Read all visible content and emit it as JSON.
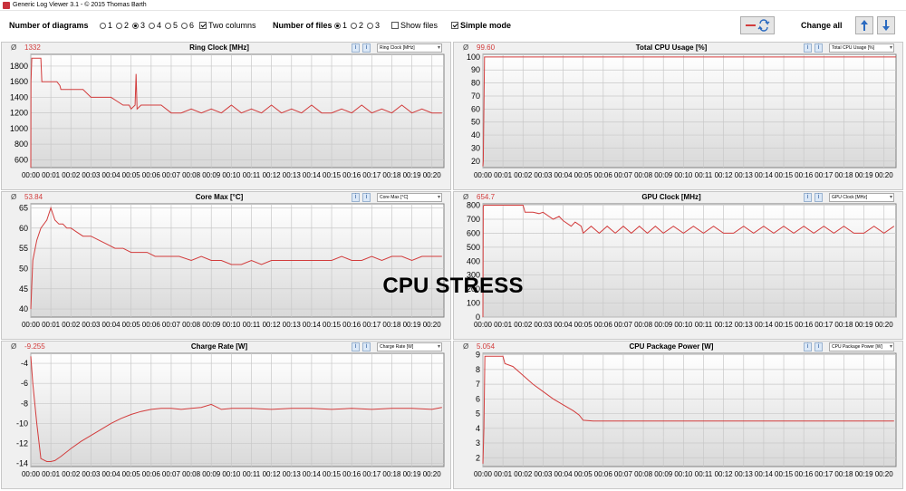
{
  "window": {
    "title": "Generic Log Viewer 3.1 - © 2015 Thomas Barth"
  },
  "toolbar": {
    "num_diagrams_label": "Number of diagrams",
    "diagram_options": [
      "1",
      "2",
      "3",
      "4",
      "5",
      "6"
    ],
    "diagram_selected": "3",
    "two_columns_label": "Two columns",
    "two_columns_checked": true,
    "num_files_label": "Number of files",
    "file_options": [
      "1",
      "2",
      "3"
    ],
    "file_selected": "1",
    "show_files_label": "Show files",
    "show_files_checked": false,
    "simple_mode_label": "Simple mode",
    "simple_mode_checked": true,
    "change_all_label": "Change all",
    "icons": [
      "swap-lines-icon",
      "arrow-up-icon",
      "arrow-down-icon"
    ]
  },
  "overlay": {
    "text": "CPU STRESS"
  },
  "colors": {
    "line": "#d23c3c",
    "plot_bg_top": "#ffffff",
    "plot_bg_bottom": "#d9d9d9"
  },
  "x_ticks": [
    "00:00",
    "00:01",
    "00:02",
    "00:03",
    "00:04",
    "00:05",
    "00:06",
    "00:07",
    "00:08",
    "00:09",
    "00:10",
    "00:11",
    "00:12",
    "00:13",
    "00:14",
    "00:15",
    "00:16",
    "00:17",
    "00:18",
    "00:19",
    "00:20"
  ],
  "panels": [
    {
      "title": "Ring Clock [MHz]",
      "avg": "1332",
      "select": "Ring Clock [MHz]"
    },
    {
      "title": "Total CPU Usage [%]",
      "avg": "99.60",
      "select": "Total CPU Usage [%]"
    },
    {
      "title": "Core Max [°C]",
      "avg": "53.84",
      "select": "Core Max [°C]"
    },
    {
      "title": "GPU Clock [MHz]",
      "avg": "654.7",
      "select": "GPU Clock [MHz]"
    },
    {
      "title": "Charge Rate [W]",
      "avg": "-9.255",
      "select": "Charge Rate [W]"
    },
    {
      "title": "CPU Package Power [W]",
      "avg": "5.054",
      "select": "CPU Package Power [W]"
    }
  ],
  "chart_data": [
    {
      "type": "line",
      "title": "Ring Clock [MHz]",
      "ylim": [
        500,
        1950
      ],
      "yticks": [
        600,
        800,
        1000,
        1200,
        1400,
        1600,
        1800
      ],
      "grid": true,
      "series": [
        {
          "x": [
            0,
            0.01,
            0.05,
            0.5,
            0.55,
            1.0,
            1.3,
            1.45,
            1.5,
            1.7,
            2.5,
            2.6,
            3.0,
            3.5,
            4.0,
            4.6,
            4.9,
            5.0,
            5.2,
            5.25,
            5.3,
            5.5,
            6.0,
            6.5,
            7,
            7.5,
            8,
            8.5,
            9,
            9.5,
            10,
            10.5,
            11,
            11.5,
            12,
            12.5,
            13,
            13.5,
            14,
            14.5,
            15,
            15.5,
            16,
            16.5,
            17,
            17.5,
            18,
            18.5,
            19,
            19.5,
            20,
            20.5
          ],
          "y": [
            500,
            1600,
            1900,
            1900,
            1600,
            1600,
            1600,
            1550,
            1500,
            1500,
            1500,
            1500,
            1400,
            1400,
            1400,
            1300,
            1300,
            1250,
            1300,
            1700,
            1250,
            1300,
            1300,
            1300,
            1200,
            1200,
            1250,
            1200,
            1250,
            1200,
            1300,
            1200,
            1250,
            1200,
            1300,
            1200,
            1250,
            1200,
            1300,
            1200,
            1200,
            1250,
            1200,
            1300,
            1200,
            1250,
            1200,
            1300,
            1200,
            1250,
            1200,
            1200
          ]
        }
      ]
    },
    {
      "type": "line",
      "title": "Total CPU Usage [%]",
      "ylim": [
        15,
        102
      ],
      "yticks": [
        20,
        30,
        40,
        50,
        60,
        70,
        80,
        90,
        100
      ],
      "grid": true,
      "series": [
        {
          "x": [
            0,
            0.02,
            0.08,
            0.1,
            20.6
          ],
          "y": [
            16,
            20,
            100,
            100,
            100
          ]
        }
      ]
    },
    {
      "type": "line",
      "title": "Core Max [°C]",
      "ylim": [
        38,
        66
      ],
      "yticks": [
        40,
        45,
        50,
        55,
        60,
        65
      ],
      "grid": true,
      "series": [
        {
          "x": [
            0,
            0.1,
            0.3,
            0.5,
            0.8,
            1.0,
            1.2,
            1.4,
            1.6,
            1.8,
            2.0,
            2.3,
            2.6,
            3.0,
            3.4,
            3.8,
            4.2,
            4.6,
            5.0,
            5.4,
            5.8,
            6.2,
            6.6,
            7.0,
            7.4,
            8.0,
            8.5,
            9.0,
            9.5,
            10.0,
            10.5,
            11.0,
            11.5,
            12.0,
            12.5,
            13.0,
            13.5,
            14.0,
            14.5,
            15.0,
            15.5,
            16.0,
            16.5,
            17.0,
            17.5,
            18.0,
            18.5,
            19.0,
            19.5,
            20.0,
            20.5
          ],
          "y": [
            40,
            52,
            57,
            60,
            62,
            65,
            62,
            61,
            61,
            60,
            60,
            59,
            58,
            58,
            57,
            56,
            55,
            55,
            54,
            54,
            54,
            53,
            53,
            53,
            53,
            52,
            53,
            52,
            52,
            51,
            51,
            52,
            51,
            52,
            52,
            52,
            52,
            52,
            52,
            52,
            53,
            52,
            52,
            53,
            52,
            53,
            53,
            52,
            53,
            53,
            53
          ]
        }
      ]
    },
    {
      "type": "line",
      "title": "GPU Clock [MHz]",
      "ylim": [
        0,
        810
      ],
      "yticks": [
        0,
        100,
        200,
        300,
        400,
        500,
        600,
        700,
        800
      ],
      "grid": true,
      "series": [
        {
          "x": [
            0,
            0.02,
            0.05,
            1.0,
            2.0,
            2.1,
            2.5,
            2.8,
            3.0,
            3.5,
            3.8,
            4.0,
            4.4,
            4.6,
            4.9,
            5.0,
            5.4,
            5.8,
            6.2,
            6.6,
            7.0,
            7.4,
            7.8,
            8.2,
            8.6,
            9.0,
            9.5,
            10.0,
            10.5,
            11.0,
            11.5,
            12.0,
            12.5,
            13.0,
            13.5,
            14.0,
            14.5,
            15.0,
            15.5,
            16.0,
            16.5,
            17.0,
            17.5,
            18.0,
            18.5,
            19.0,
            19.5,
            20.0,
            20.5
          ],
          "y": [
            0,
            790,
            800,
            800,
            800,
            750,
            750,
            740,
            750,
            700,
            720,
            690,
            650,
            680,
            650,
            600,
            650,
            600,
            650,
            600,
            650,
            600,
            650,
            600,
            650,
            600,
            650,
            600,
            650,
            600,
            650,
            600,
            600,
            650,
            600,
            650,
            600,
            650,
            600,
            650,
            600,
            650,
            600,
            650,
            600,
            600,
            650,
            600,
            650
          ]
        }
      ]
    },
    {
      "type": "line",
      "title": "Charge Rate [W]",
      "ylim": [
        -14.3,
        -3
      ],
      "yticks": [
        -4,
        -6,
        -8,
        -10,
        -12,
        -14
      ],
      "grid": true,
      "series": [
        {
          "x": [
            0,
            0.1,
            0.3,
            0.5,
            0.8,
            1.0,
            1.2,
            1.5,
            2.0,
            2.5,
            3.0,
            3.5,
            4.0,
            4.5,
            5.0,
            5.5,
            6.0,
            6.5,
            7.0,
            7.5,
            8.0,
            8.5,
            9.0,
            9.5,
            10.0,
            11.0,
            12.0,
            13.0,
            14.0,
            15.0,
            16.0,
            17.0,
            18.0,
            19.0,
            20.0,
            20.5
          ],
          "y": [
            -3.3,
            -6,
            -10,
            -13.5,
            -13.8,
            -13.8,
            -13.7,
            -13.3,
            -12.5,
            -11.8,
            -11.2,
            -10.6,
            -10,
            -9.5,
            -9.1,
            -8.8,
            -8.6,
            -8.5,
            -8.5,
            -8.6,
            -8.5,
            -8.4,
            -8.1,
            -8.6,
            -8.5,
            -8.5,
            -8.6,
            -8.5,
            -8.5,
            -8.6,
            -8.5,
            -8.6,
            -8.5,
            -8.5,
            -8.6,
            -8.4
          ]
        }
      ]
    },
    {
      "type": "line",
      "title": "CPU Package Power [W]",
      "ylim": [
        1.4,
        9.1
      ],
      "yticks": [
        2,
        3,
        4,
        5,
        6,
        7,
        8,
        9
      ],
      "grid": true,
      "series": [
        {
          "x": [
            0,
            0.05,
            0.1,
            0.2,
            0.3,
            1.0,
            1.1,
            1.5,
            2.0,
            2.5,
            3.0,
            3.5,
            4.0,
            4.5,
            4.8,
            5.0,
            5.5,
            6,
            7,
            8,
            9,
            10,
            11,
            12,
            13,
            14,
            15,
            16,
            17,
            18,
            19,
            20,
            20.5
          ],
          "y": [
            1.6,
            4,
            8.9,
            8.9,
            8.9,
            8.9,
            8.4,
            8.2,
            7.6,
            7.0,
            6.5,
            6.0,
            5.6,
            5.2,
            4.9,
            4.55,
            4.5,
            4.5,
            4.5,
            4.5,
            4.5,
            4.5,
            4.5,
            4.5,
            4.5,
            4.5,
            4.5,
            4.5,
            4.5,
            4.5,
            4.5,
            4.5,
            4.5
          ]
        }
      ]
    }
  ]
}
